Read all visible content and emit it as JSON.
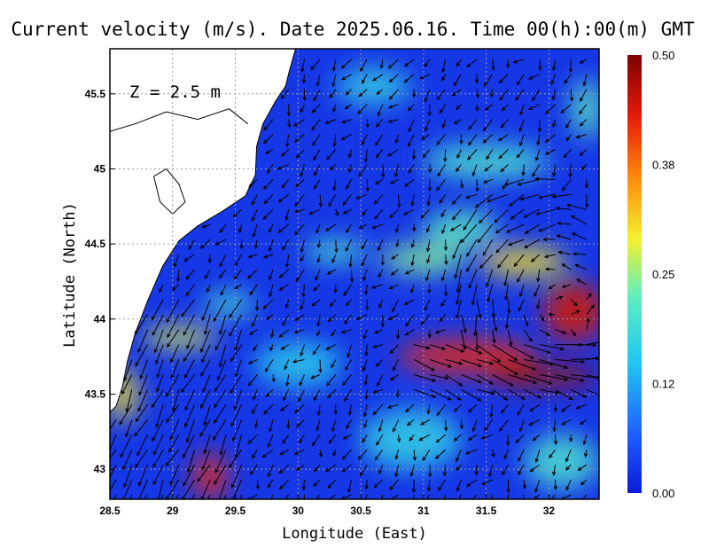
{
  "chart_data": {
    "type": "heatmap",
    "title": "Current velocity (m/s). Date 2025.06.16. Time 00(h):00(m) GMT",
    "xlabel": "Longitude (East)",
    "ylabel": "Latitude (North)",
    "depth_label": "Z = 2.5 m",
    "xlim": [
      28.5,
      32.4
    ],
    "ylim": [
      42.8,
      45.8
    ],
    "x_ticks": [
      "28.5",
      "29",
      "29.5",
      "30",
      "30.5",
      "31",
      "31.5",
      "32"
    ],
    "x_tick_values": [
      28.5,
      29,
      29.5,
      30,
      30.5,
      31,
      31.5,
      32
    ],
    "y_ticks": [
      "43",
      "43.5",
      "44",
      "44.5",
      "45",
      "45.5"
    ],
    "y_tick_values": [
      43,
      43.5,
      44,
      44.5,
      45,
      45.5
    ],
    "grid": true,
    "colorbar": {
      "range": [
        0.0,
        0.5
      ],
      "ticks": [
        "0.50",
        "0.38",
        "0.25",
        "0.12",
        "0.00"
      ],
      "tick_values": [
        0.5,
        0.375,
        0.25,
        0.125,
        0.0
      ],
      "colors": [
        "#0a1bd8",
        "#1e63ff",
        "#22c7f2",
        "#5fefbd",
        "#f4f12c",
        "#ff8a0c",
        "#e51b08",
        "#7d0000"
      ]
    },
    "coastline": [
      [
        28.5,
        43.38
      ],
      [
        28.55,
        43.42
      ],
      [
        28.6,
        43.55
      ],
      [
        28.64,
        43.72
      ],
      [
        28.7,
        43.9
      ],
      [
        28.8,
        44.12
      ],
      [
        28.92,
        44.35
      ],
      [
        29.05,
        44.52
      ],
      [
        29.2,
        44.62
      ],
      [
        29.4,
        44.72
      ],
      [
        29.58,
        44.82
      ],
      [
        29.66,
        44.96
      ],
      [
        29.67,
        45.15
      ],
      [
        29.72,
        45.3
      ],
      [
        29.82,
        45.45
      ],
      [
        29.9,
        45.55
      ],
      [
        29.93,
        45.65
      ],
      [
        29.98,
        45.8
      ]
    ],
    "fields": [
      {
        "name": "southwest_jet",
        "cx": 29.3,
        "cy": 42.95,
        "speed": 0.4,
        "radius": 0.18
      },
      {
        "name": "coastal_jet",
        "cx": 29.1,
        "cy": 43.85,
        "speed": 0.3,
        "radius": 0.22
      },
      {
        "name": "eastern_jet",
        "cx": 31.6,
        "cy": 43.68,
        "speed": 0.45,
        "radius": 0.35
      },
      {
        "name": "eddy_ring",
        "cx": 31.9,
        "cy": 44.25,
        "speed": 0.38,
        "radius": 0.42
      },
      {
        "name": "northern_band",
        "cx": 31.4,
        "cy": 45.05,
        "speed": 0.2,
        "radius": 0.4
      }
    ]
  }
}
